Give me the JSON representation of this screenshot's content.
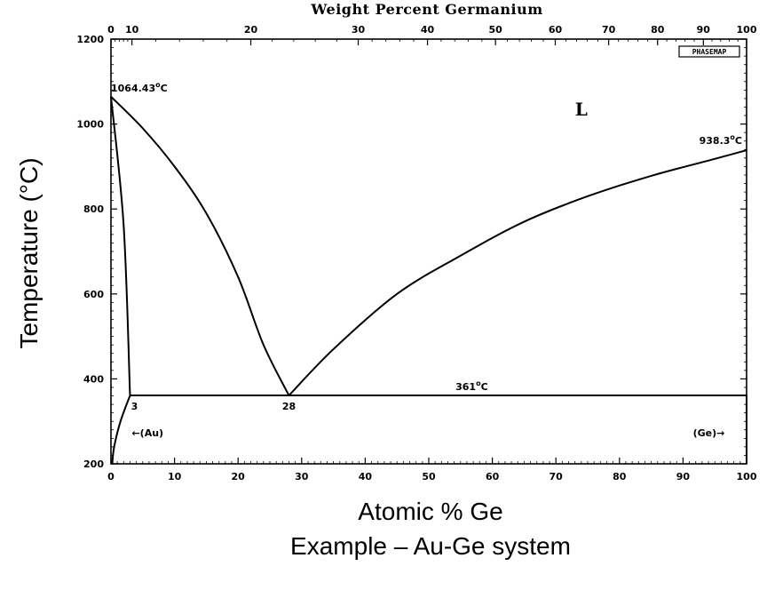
{
  "chart_data": {
    "type": "line",
    "title": "",
    "top_axis_label": "Weight Percent Germanium",
    "xlabel": "Atomic % Ge",
    "ylabel": "Temperature (°C)",
    "caption": "Example – Au-Ge system",
    "xlim": [
      0,
      100
    ],
    "ylim": [
      200,
      1200
    ],
    "x_ticks": [
      "0",
      "10",
      "20",
      "30",
      "40",
      "50",
      "60",
      "70",
      "80",
      "90",
      "100"
    ],
    "y_ticks": [
      "200",
      "400",
      "600",
      "800",
      "1000",
      "1200"
    ],
    "top_ticks": [
      {
        "label": "0",
        "at": 0
      },
      {
        "label": "10",
        "at": 3.3
      },
      {
        "label": "20",
        "at": 22.0
      },
      {
        "label": "30",
        "at": 38.9
      },
      {
        "label": "40",
        "at": 49.8
      },
      {
        "label": "50",
        "at": 60.5
      },
      {
        "label": "60",
        "at": 69.9
      },
      {
        "label": "70",
        "at": 78.3
      },
      {
        "label": "80",
        "at": 86.0
      },
      {
        "label": "90",
        "at": 93.2
      },
      {
        "label": "100",
        "at": 100
      }
    ],
    "series": [
      {
        "id": "liquidus-au",
        "points": [
          [
            0,
            1064.43
          ],
          [
            5,
            990
          ],
          [
            10,
            900
          ],
          [
            15,
            790
          ],
          [
            20,
            640
          ],
          [
            24,
            480
          ],
          [
            28,
            361
          ]
        ]
      },
      {
        "id": "liquidus-ge",
        "points": [
          [
            28,
            361
          ],
          [
            35,
            470
          ],
          [
            45,
            600
          ],
          [
            55,
            690
          ],
          [
            65,
            770
          ],
          [
            75,
            830
          ],
          [
            85,
            878
          ],
          [
            95,
            918
          ],
          [
            100,
            938.3
          ]
        ]
      },
      {
        "id": "solvus-au",
        "points": [
          [
            0,
            1064.43
          ],
          [
            2,
            760
          ],
          [
            3,
            361
          ]
        ]
      },
      {
        "id": "solvus-lower",
        "points": [
          [
            3,
            361
          ],
          [
            1.5,
            300
          ],
          [
            0.5,
            240
          ],
          [
            0.2,
            200
          ]
        ]
      },
      {
        "id": "eutectic",
        "points": [
          [
            3,
            361
          ],
          [
            100,
            361
          ]
        ]
      },
      {
        "id": "ge-solvus",
        "points": [
          [
            100,
            361
          ],
          [
            100,
            200
          ]
        ]
      }
    ],
    "annotations": [
      {
        "text": "1064.43°C",
        "base": "1064.43",
        "sup": "o",
        "tail": "C",
        "x": 0,
        "y": 1064.43
      },
      {
        "text": "938.3°C",
        "base": "938.3",
        "sup": "o",
        "tail": "C",
        "x": 100,
        "y": 938.3
      },
      {
        "text": "361°C",
        "base": "361",
        "sup": "o",
        "tail": "C",
        "x": 57,
        "y": 361
      },
      {
        "text": "3",
        "x": 3,
        "y": 361
      },
      {
        "text": "28",
        "x": 28,
        "y": 361
      },
      {
        "text": "L",
        "x": 74,
        "y": 1020
      },
      {
        "text": "←(Au)",
        "x": 3,
        "y": 265
      },
      {
        "text": "(Ge)→",
        "x": 96,
        "y": 265
      }
    ],
    "badge": "PHASEMAP",
    "grid": false,
    "legend": "none"
  }
}
